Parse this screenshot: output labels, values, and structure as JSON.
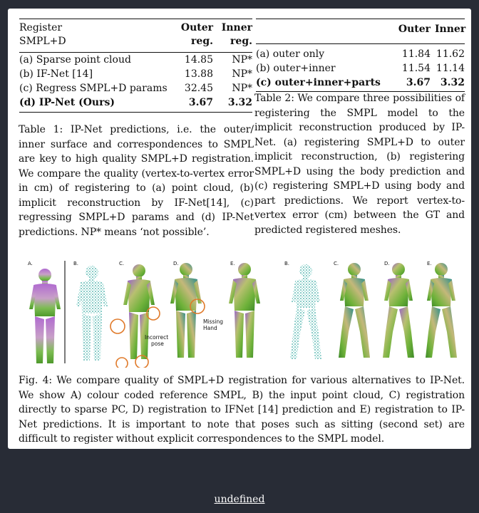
{
  "table1": {
    "header": {
      "col1_line1": "Register",
      "col1_line2": "SMPL+D",
      "col2_line1": "Outer",
      "col2_line2": "reg.",
      "col3_line1": "Inner",
      "col3_line2": "reg."
    },
    "rows": [
      {
        "label": "(a) Sparse point cloud",
        "outer": "14.85",
        "inner": "NP*"
      },
      {
        "label": "(b) IF-Net [14]",
        "outer": "13.88",
        "inner": "NP*"
      },
      {
        "label": "(c) Regress SMPL+D params",
        "outer": "32.45",
        "inner": "NP*"
      },
      {
        "label": "(d) IP-Net (Ours)",
        "outer": "3.67",
        "inner": "3.32"
      }
    ],
    "caption": "Table 1: IP-Net predictions, i.e. the outer/ inner surface and correspondences to SMPL are key to high quality SMPL+D registration. We compare the quality (vertex-to-vertex error in cm) of registering to (a) point cloud, (b) implicit reconstruction by IF-Net[14], (c) regressing SMPL+D params and (d) IP-Net predictions. NP* means ‘not possible’."
  },
  "table2": {
    "header": {
      "col2": "Outer",
      "col3": "Inner"
    },
    "rows": [
      {
        "label": "(a) outer only",
        "outer": "11.84",
        "inner": "11.62"
      },
      {
        "label": "(b) outer+inner",
        "outer": "11.54",
        "inner": "11.14"
      },
      {
        "label": "(c) outer+inner+parts",
        "outer": "3.67",
        "inner": "3.32"
      }
    ],
    "caption": "Table 2: We compare three possibilities of registering the SMPL model to the implicit reconstruction produced by IP-Net. (a) registering SMPL+D to outer implicit reconstruction, (b) registering SMPL+D using the body prediction and (c) registering SMPL+D using body and part predictions. We report vertex-to-vertex error (cm) between the GT and predicted registered meshes."
  },
  "figure": {
    "panel_labels": [
      "A.",
      "B.",
      "C.",
      "D.",
      "E.",
      "B.",
      "C.",
      "D.",
      "E."
    ],
    "annotation_incorrect_line1": "Incorrect",
    "annotation_incorrect_line2": "pose",
    "annotation_missing_line1": "Missing",
    "annotation_missing_line2": "Hand",
    "caption": "Fig. 4: We compare quality of SMPL+D registration for various alternatives to IP-Net. We show A) colour coded reference SMPL, B) the input point cloud, C) registration directly to sparse PC, D) registration to IFNet [14] prediction and E) registration to IP-Net predictions. It is important to note that poses such as sitting (second set) are difficult to register without explicit correspondences to the SMPL model."
  },
  "footer": {
    "link_text": "undefined"
  },
  "colors": {
    "page_bg": "#282c36",
    "card_bg": "#ffffff",
    "body_green": "#6fb23a",
    "body_purple": "#9a64c8",
    "body_teal": "#2f8f8a",
    "pointcloud": "#35a8a0",
    "highlight_circle": "#e07a2a"
  }
}
